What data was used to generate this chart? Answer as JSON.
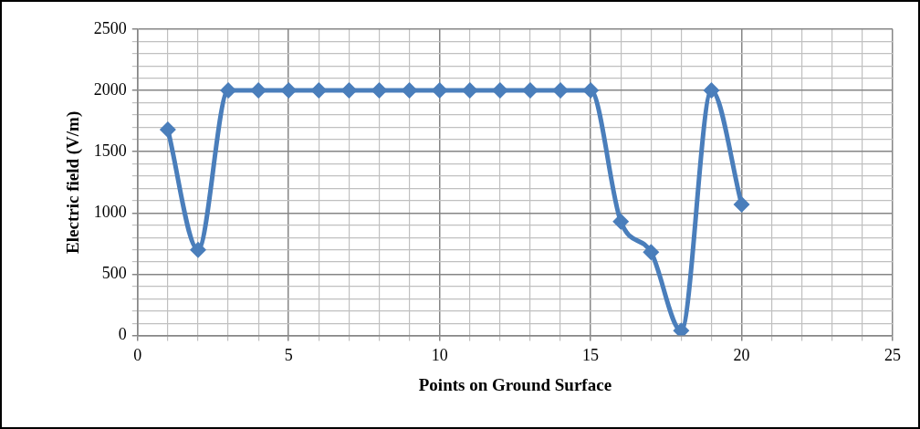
{
  "chart_data": {
    "type": "line",
    "xlabel": "Points on Ground Surface",
    "ylabel": "Electric field (V/m)",
    "x": [
      1,
      2,
      3,
      4,
      5,
      6,
      7,
      8,
      9,
      10,
      11,
      12,
      13,
      14,
      15,
      16,
      17,
      18,
      19,
      20
    ],
    "series": [
      {
        "color": "#4a7ebb",
        "values": [
          1680,
          700,
          2000,
          2000,
          2000,
          2000,
          2000,
          2000,
          2000,
          2000,
          2000,
          2000,
          2000,
          2000,
          2000,
          930,
          680,
          40,
          2000,
          1070
        ]
      }
    ],
    "xlim": [
      0,
      25
    ],
    "xticks": [
      0,
      {
        "value": 1,
        "label": null
      },
      {
        "value": 2,
        "label": null
      },
      {
        "value": 3,
        "label": null
      },
      {
        "value": 4,
        "label": null
      },
      5,
      {
        "value": 6,
        "label": null
      },
      {
        "value": 7,
        "label": null
      },
      {
        "value": 8,
        "label": null
      },
      {
        "value": 9,
        "label": null
      },
      10,
      {
        "value": 11,
        "label": null
      },
      {
        "value": 12,
        "label": null
      },
      {
        "value": 13,
        "label": null
      },
      {
        "value": 14,
        "label": null
      },
      15,
      {
        "value": 16,
        "label": null
      },
      {
        "value": 17,
        "label": null
      },
      {
        "value": 18,
        "label": null
      },
      {
        "value": 19,
        "label": null
      },
      20,
      {
        "value": 21,
        "label": null
      },
      {
        "value": 22,
        "label": null
      },
      {
        "value": 23,
        "label": null
      },
      {
        "value": 24,
        "label": null
      },
      25
    ],
    "ylim": [
      0,
      2500
    ],
    "yticks": [
      0,
      {
        "value": 100,
        "label": null
      },
      {
        "value": 200,
        "label": null
      },
      {
        "value": 300,
        "label": null
      },
      {
        "value": 400,
        "label": null
      },
      500,
      {
        "value": 600,
        "label": null
      },
      {
        "value": 700,
        "label": null
      },
      {
        "value": 800,
        "label": null
      },
      {
        "value": 900,
        "label": null
      },
      1000,
      {
        "value": 1100,
        "label": null
      },
      {
        "value": 1200,
        "label": null
      },
      {
        "value": 1300,
        "label": null
      },
      {
        "value": 1400,
        "label": null
      },
      1500,
      {
        "value": 1600,
        "label": null
      },
      {
        "value": 1700,
        "label": null
      },
      {
        "value": 1800,
        "label": null
      },
      {
        "value": 1900,
        "label": null
      },
      2000,
      {
        "value": 2100,
        "label": null
      },
      {
        "value": 2200,
        "label": null
      },
      {
        "value": 2300,
        "label": null
      },
      {
        "value": 2400,
        "label": null
      },
      2500
    ],
    "grid": true,
    "legend": false,
    "marker": "diamond",
    "line_style": "solid"
  }
}
